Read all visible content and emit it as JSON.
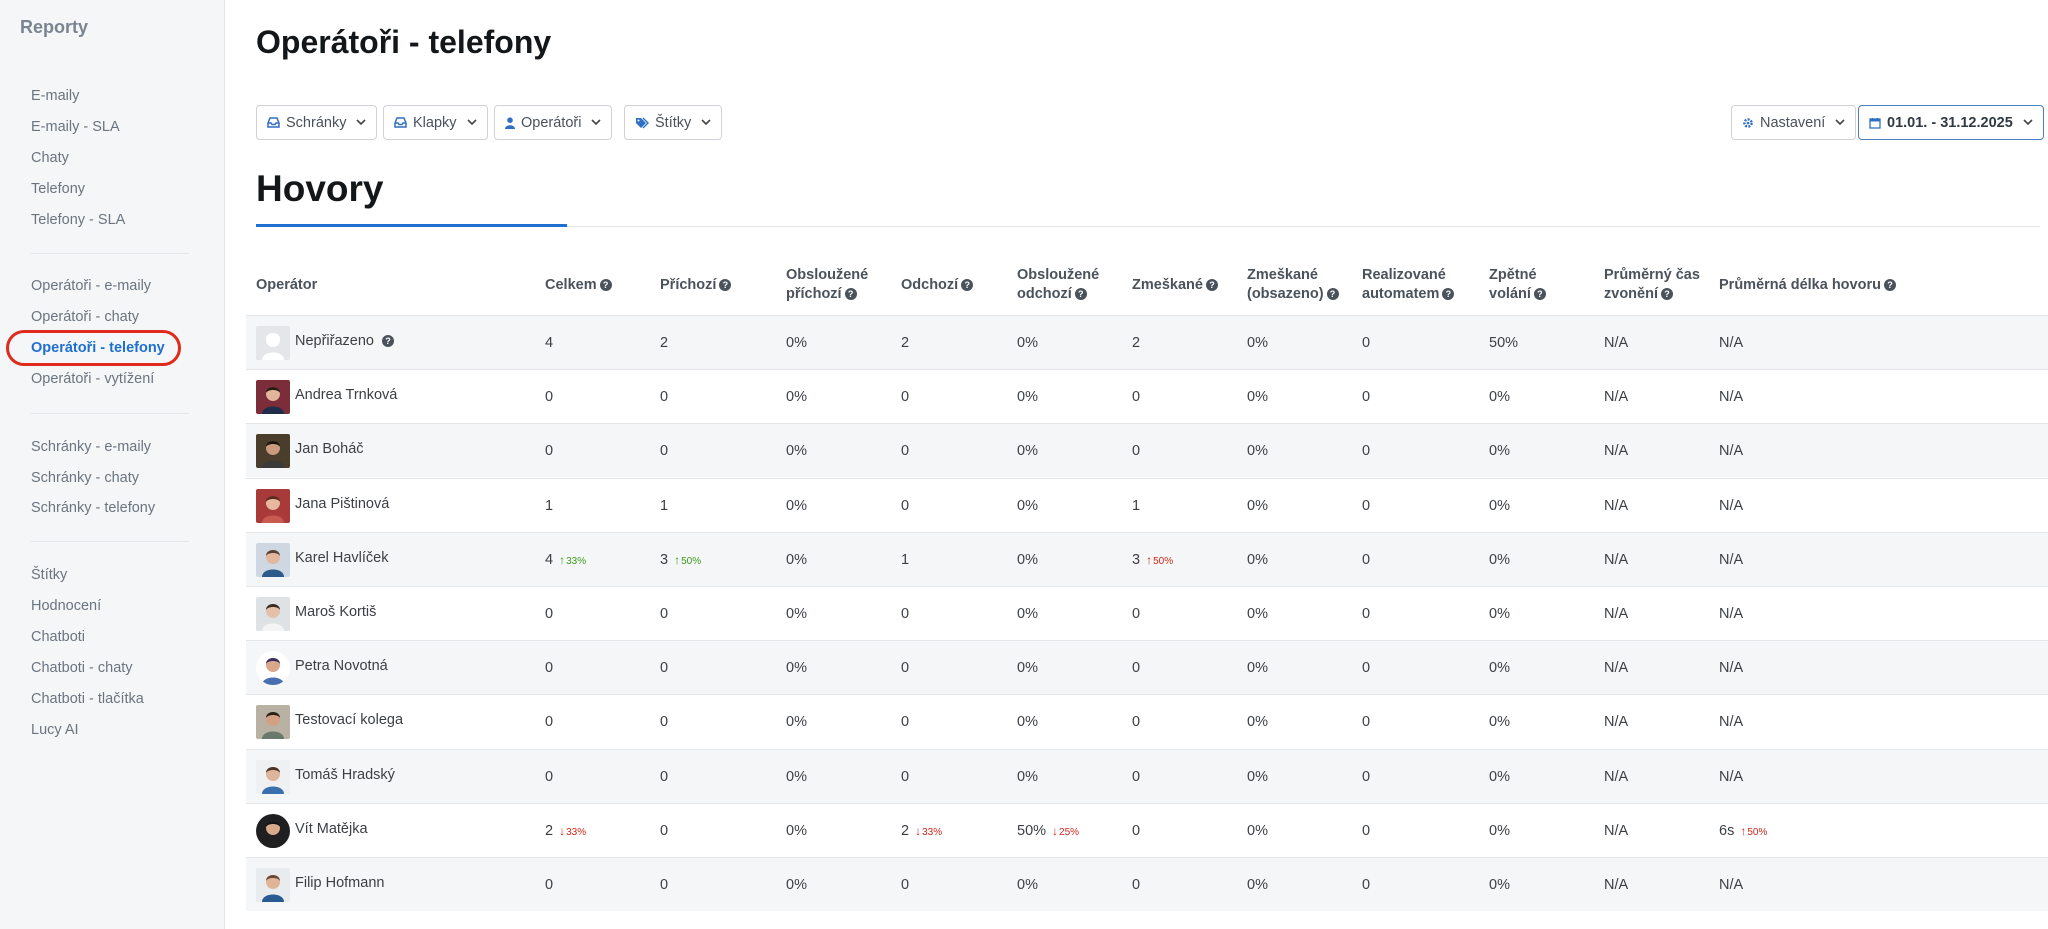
{
  "sidebar": {
    "title": "Reporty",
    "groups": [
      [
        "E-maily",
        "E-maily - SLA",
        "Chaty",
        "Telefony",
        "Telefony - SLA"
      ],
      [
        "Operátoři - e-maily",
        "Operátoři - chaty",
        "Operátoři - telefony",
        "Operátoři - vytížení"
      ],
      [
        "Schránky - e-maily",
        "Schránky - chaty",
        "Schránky - telefony"
      ],
      [
        "Štítky",
        "Hodnocení",
        "Chatboti",
        "Chatboti - chaty",
        "Chatboti - tlačítka",
        "Lucy AI"
      ]
    ],
    "active": "Operátoři - telefony"
  },
  "page": {
    "title": "Operátoři - telefony",
    "section_title": "Hovory"
  },
  "filters": {
    "mailboxes": "Schránky",
    "extensions": "Klapky",
    "operators": "Operátoři",
    "tags": "Štítky",
    "settings": "Nastavení",
    "date_range": "01.01. - 31.12.2025"
  },
  "table": {
    "headers": [
      {
        "line1": "Operátor",
        "line2": "",
        "help": false
      },
      {
        "line1": "Celkem",
        "line2": "",
        "help": true
      },
      {
        "line1": "Příchozí",
        "line2": "",
        "help": true
      },
      {
        "line1": "Obsloužené",
        "line2": "příchozí",
        "help": true
      },
      {
        "line1": "Odchozí",
        "line2": "",
        "help": true
      },
      {
        "line1": "Obsloužené",
        "line2": "odchozí",
        "help": true
      },
      {
        "line1": "Zmeškané",
        "line2": "",
        "help": true
      },
      {
        "line1": "Zmeškané",
        "line2": "(obsazeno)",
        "help": true
      },
      {
        "line1": "Realizované",
        "line2": "automatem",
        "help": true
      },
      {
        "line1": "Zpětné",
        "line2": "volání",
        "help": true
      },
      {
        "line1": "Průměrný čas",
        "line2": "zvonění",
        "help": true
      },
      {
        "line1": "Průměrná délka hovoru",
        "line2": "",
        "help": true
      }
    ],
    "rows": [
      {
        "name": "Nepřiřazeno",
        "help": true,
        "avatar": "placeholder",
        "cells": [
          {
            "v": "4"
          },
          {
            "v": "2"
          },
          {
            "v": "0%"
          },
          {
            "v": "2"
          },
          {
            "v": "0%"
          },
          {
            "v": "2"
          },
          {
            "v": "0%"
          },
          {
            "v": "0"
          },
          {
            "v": "50%"
          },
          {
            "v": "N/A"
          },
          {
            "v": "N/A"
          }
        ]
      },
      {
        "name": "Andrea Trnková",
        "avatar": "a1",
        "cells": [
          {
            "v": "0"
          },
          {
            "v": "0"
          },
          {
            "v": "0%"
          },
          {
            "v": "0"
          },
          {
            "v": "0%"
          },
          {
            "v": "0"
          },
          {
            "v": "0%"
          },
          {
            "v": "0"
          },
          {
            "v": "0%"
          },
          {
            "v": "N/A"
          },
          {
            "v": "N/A"
          }
        ]
      },
      {
        "name": "Jan Boháč",
        "avatar": "a2",
        "cells": [
          {
            "v": "0"
          },
          {
            "v": "0"
          },
          {
            "v": "0%"
          },
          {
            "v": "0"
          },
          {
            "v": "0%"
          },
          {
            "v": "0"
          },
          {
            "v": "0%"
          },
          {
            "v": "0"
          },
          {
            "v": "0%"
          },
          {
            "v": "N/A"
          },
          {
            "v": "N/A"
          }
        ]
      },
      {
        "name": "Jana Pištinová",
        "avatar": "a3",
        "cells": [
          {
            "v": "1"
          },
          {
            "v": "1"
          },
          {
            "v": "0%"
          },
          {
            "v": "0"
          },
          {
            "v": "0%"
          },
          {
            "v": "1"
          },
          {
            "v": "0%"
          },
          {
            "v": "0"
          },
          {
            "v": "0%"
          },
          {
            "v": "N/A"
          },
          {
            "v": "N/A"
          }
        ]
      },
      {
        "name": "Karel Havlíček",
        "avatar": "a4",
        "cells": [
          {
            "v": "4",
            "t": "33%",
            "d": "up-green"
          },
          {
            "v": "3",
            "t": "50%",
            "d": "up-green"
          },
          {
            "v": "0%"
          },
          {
            "v": "1"
          },
          {
            "v": "0%"
          },
          {
            "v": "3",
            "t": "50%",
            "d": "up-red"
          },
          {
            "v": "0%"
          },
          {
            "v": "0"
          },
          {
            "v": "0%"
          },
          {
            "v": "N/A"
          },
          {
            "v": "N/A"
          }
        ]
      },
      {
        "name": "Maroš Kortiš",
        "avatar": "a5",
        "cells": [
          {
            "v": "0"
          },
          {
            "v": "0"
          },
          {
            "v": "0%"
          },
          {
            "v": "0"
          },
          {
            "v": "0%"
          },
          {
            "v": "0"
          },
          {
            "v": "0%"
          },
          {
            "v": "0"
          },
          {
            "v": "0%"
          },
          {
            "v": "N/A"
          },
          {
            "v": "N/A"
          }
        ]
      },
      {
        "name": "Petra Novotná",
        "avatar": "a6",
        "cells": [
          {
            "v": "0"
          },
          {
            "v": "0"
          },
          {
            "v": "0%"
          },
          {
            "v": "0"
          },
          {
            "v": "0%"
          },
          {
            "v": "0"
          },
          {
            "v": "0%"
          },
          {
            "v": "0"
          },
          {
            "v": "0%"
          },
          {
            "v": "N/A"
          },
          {
            "v": "N/A"
          }
        ]
      },
      {
        "name": "Testovací kolega",
        "avatar": "a7",
        "cells": [
          {
            "v": "0"
          },
          {
            "v": "0"
          },
          {
            "v": "0%"
          },
          {
            "v": "0"
          },
          {
            "v": "0%"
          },
          {
            "v": "0"
          },
          {
            "v": "0%"
          },
          {
            "v": "0"
          },
          {
            "v": "0%"
          },
          {
            "v": "N/A"
          },
          {
            "v": "N/A"
          }
        ]
      },
      {
        "name": "Tomáš Hradský",
        "avatar": "a8",
        "cells": [
          {
            "v": "0"
          },
          {
            "v": "0"
          },
          {
            "v": "0%"
          },
          {
            "v": "0"
          },
          {
            "v": "0%"
          },
          {
            "v": "0"
          },
          {
            "v": "0%"
          },
          {
            "v": "0"
          },
          {
            "v": "0%"
          },
          {
            "v": "N/A"
          },
          {
            "v": "N/A"
          }
        ]
      },
      {
        "name": "Vít Matějka",
        "avatar": "a9",
        "cells": [
          {
            "v": "2",
            "t": "33%",
            "d": "down-red"
          },
          {
            "v": "0"
          },
          {
            "v": "0%"
          },
          {
            "v": "2",
            "t": "33%",
            "d": "down-red"
          },
          {
            "v": "50%",
            "t": "25%",
            "d": "down-red"
          },
          {
            "v": "0"
          },
          {
            "v": "0%"
          },
          {
            "v": "0"
          },
          {
            "v": "0%"
          },
          {
            "v": "N/A"
          },
          {
            "v": "6s",
            "t": "50%",
            "d": "up-red"
          }
        ]
      },
      {
        "name": "Filip Hofmann",
        "avatar": "a10",
        "cells": [
          {
            "v": "0"
          },
          {
            "v": "0"
          },
          {
            "v": "0%"
          },
          {
            "v": "0"
          },
          {
            "v": "0%"
          },
          {
            "v": "0"
          },
          {
            "v": "0%"
          },
          {
            "v": "0"
          },
          {
            "v": "0%"
          },
          {
            "v": "N/A"
          },
          {
            "v": "N/A"
          }
        ]
      }
    ]
  },
  "colors": {
    "accent": "#1e6fd0",
    "highlight_ring": "#e02a1b",
    "trend_up_good": "#3c9a1d",
    "trend_bad": "#d0271b"
  }
}
